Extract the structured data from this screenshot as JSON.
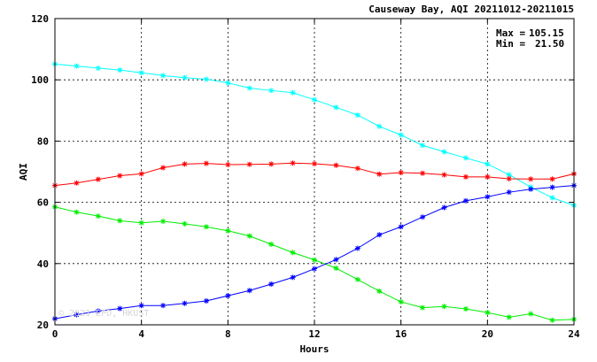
{
  "chart_data": {
    "type": "line",
    "title": "Causeway Bay, AQI 20211012-20211015",
    "xlabel": "Hours",
    "ylabel": "AQI",
    "xlim": [
      0,
      24
    ],
    "ylim": [
      20,
      120
    ],
    "xticks": [
      0,
      4,
      8,
      12,
      16,
      20,
      24
    ],
    "yticks": [
      20,
      40,
      60,
      80,
      100,
      120
    ],
    "grid": true,
    "x": [
      0,
      1,
      2,
      3,
      4,
      5,
      6,
      7,
      8,
      9,
      10,
      11,
      12,
      13,
      14,
      15,
      16,
      17,
      18,
      19,
      20,
      21,
      22,
      23,
      24
    ],
    "stats": {
      "max_label": "Max =",
      "max_value": "105.15",
      "min_label": "Min =",
      "min_value": "21.50"
    },
    "watermark": "© 2021 EPD, HKUST",
    "series": [
      {
        "color": "#00ffff",
        "values": [
          105.15,
          104.5,
          103.8,
          103.2,
          102.3,
          101.4,
          100.7,
          100.2,
          99.0,
          97.3,
          96.5,
          95.8,
          93.5,
          91.0,
          88.5,
          84.8,
          82.0,
          78.6,
          76.5,
          74.5,
          72.5,
          69.0,
          65.0,
          61.5,
          59.0
        ]
      },
      {
        "color": "#ff0000",
        "values": [
          65.5,
          66.3,
          67.5,
          68.7,
          69.3,
          71.3,
          72.5,
          72.7,
          72.3,
          72.4,
          72.5,
          72.8,
          72.6,
          72.1,
          71.1,
          69.2,
          69.7,
          69.5,
          69.0,
          68.3,
          68.3,
          67.7,
          67.6,
          67.6,
          69.3
        ]
      },
      {
        "color": "#00ee00",
        "values": [
          58.5,
          56.8,
          55.5,
          54.0,
          53.3,
          53.8,
          53.0,
          52.0,
          50.7,
          49.0,
          46.3,
          43.6,
          41.2,
          38.5,
          34.8,
          31.0,
          27.5,
          25.6,
          26.0,
          25.2,
          24.0,
          22.5,
          23.6,
          21.5,
          21.8
        ]
      },
      {
        "color": "#0000ff",
        "values": [
          22.0,
          23.3,
          24.5,
          25.3,
          26.3,
          26.3,
          27.0,
          27.8,
          29.5,
          31.2,
          33.3,
          35.5,
          38.3,
          41.3,
          45.0,
          49.4,
          52.0,
          55.2,
          58.3,
          60.5,
          61.8,
          63.3,
          64.3,
          64.9,
          65.5
        ]
      }
    ]
  }
}
